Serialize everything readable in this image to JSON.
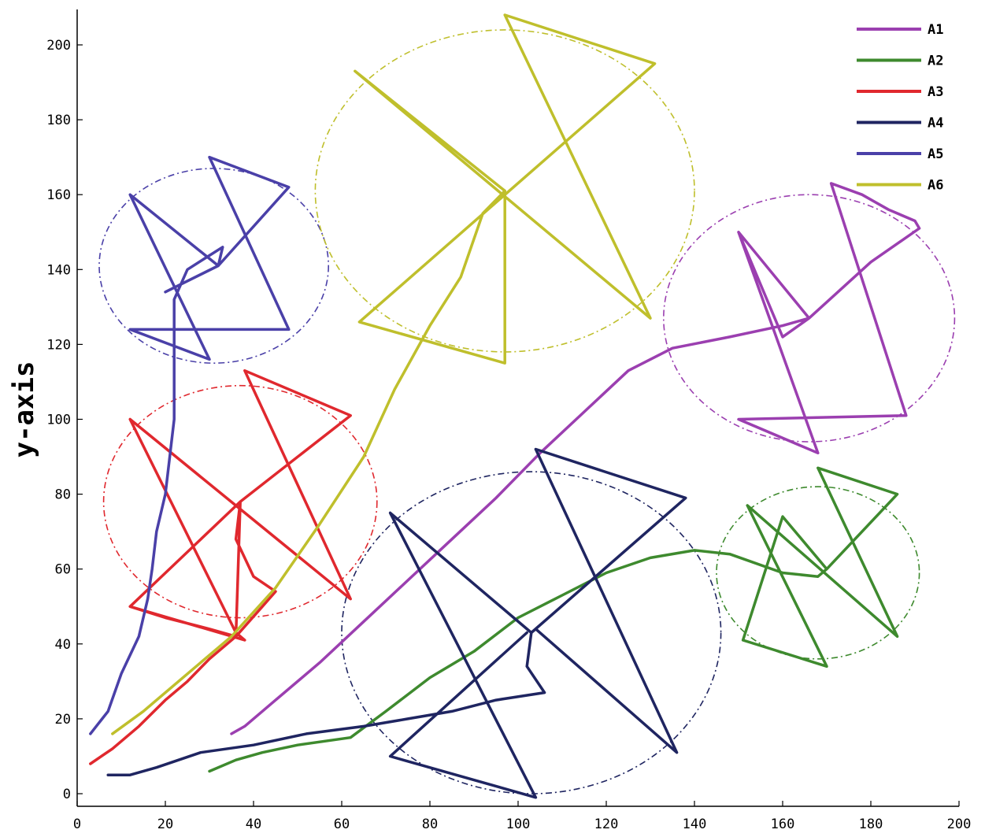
{
  "chart_data": {
    "type": "line",
    "title": "",
    "xlabel": "",
    "ylabel": "y-axis",
    "xlim": [
      0,
      200
    ],
    "ylim": [
      -5,
      210
    ],
    "xticks": [
      0,
      20,
      40,
      60,
      80,
      100,
      120,
      140,
      160,
      180,
      200
    ],
    "yticks": [
      0,
      20,
      40,
      60,
      80,
      100,
      120,
      140,
      160,
      180,
      200
    ],
    "grid": false,
    "legend_position": "top-right",
    "series": [
      {
        "name": "A1",
        "color": "#9b3fb0",
        "points": [
          [
            35,
            16
          ],
          [
            38,
            18
          ],
          [
            45,
            25
          ],
          [
            55,
            35
          ],
          [
            65,
            46
          ],
          [
            75,
            57
          ],
          [
            85,
            68
          ],
          [
            95,
            79
          ],
          [
            105,
            91
          ],
          [
            115,
            102
          ],
          [
            125,
            113
          ],
          [
            135,
            119
          ],
          [
            148,
            122
          ],
          [
            160,
            125
          ],
          [
            166,
            127
          ],
          [
            160,
            122
          ],
          [
            150,
            150
          ],
          [
            168,
            91
          ],
          [
            150,
            100
          ],
          [
            188,
            101
          ],
          [
            171,
            163
          ],
          [
            178,
            160
          ],
          [
            184,
            156
          ],
          [
            190,
            153
          ],
          [
            191,
            151
          ],
          [
            180,
            142
          ],
          [
            166,
            127
          ],
          [
            150,
            150
          ]
        ]
      },
      {
        "name": "A2",
        "color": "#3e8a2e",
        "points": [
          [
            30,
            6
          ],
          [
            36,
            9
          ],
          [
            42,
            11
          ],
          [
            50,
            13
          ],
          [
            62,
            15
          ],
          [
            70,
            22
          ],
          [
            80,
            31
          ],
          [
            90,
            38
          ],
          [
            100,
            47
          ],
          [
            110,
            53
          ],
          [
            120,
            59
          ],
          [
            130,
            63
          ],
          [
            140,
            65
          ],
          [
            148,
            64
          ],
          [
            160,
            59
          ],
          [
            168,
            58
          ],
          [
            170,
            60
          ],
          [
            160,
            74
          ],
          [
            151,
            41
          ],
          [
            170,
            34
          ],
          [
            152,
            77
          ],
          [
            186,
            42
          ],
          [
            168,
            87
          ],
          [
            186,
            80
          ],
          [
            170,
            60
          ]
        ]
      },
      {
        "name": "A3",
        "color": "#e0282e",
        "points": [
          [
            3,
            8
          ],
          [
            8,
            12
          ],
          [
            14,
            18
          ],
          [
            20,
            25
          ],
          [
            25,
            30
          ],
          [
            30,
            36
          ],
          [
            36,
            42
          ],
          [
            42,
            50
          ],
          [
            45,
            54
          ],
          [
            40,
            58
          ],
          [
            36,
            68
          ],
          [
            37,
            78
          ],
          [
            62,
            101
          ],
          [
            38,
            113
          ],
          [
            62,
            52
          ],
          [
            12,
            100
          ],
          [
            36,
            43
          ],
          [
            38,
            41
          ],
          [
            12,
            50
          ],
          [
            20,
            47
          ],
          [
            30,
            44
          ],
          [
            36,
            42
          ],
          [
            37,
            78
          ],
          [
            12,
            50
          ]
        ]
      },
      {
        "name": "A4",
        "color": "#1f2561",
        "points": [
          [
            7,
            5
          ],
          [
            12,
            5
          ],
          [
            18,
            7
          ],
          [
            28,
            11
          ],
          [
            40,
            13
          ],
          [
            52,
            16
          ],
          [
            65,
            18
          ],
          [
            75,
            20
          ],
          [
            85,
            22
          ],
          [
            95,
            25
          ],
          [
            106,
            27
          ],
          [
            102,
            34
          ],
          [
            103,
            43
          ],
          [
            104,
            44
          ],
          [
            136,
            11
          ],
          [
            104,
            92
          ],
          [
            138,
            79
          ],
          [
            103,
            43
          ],
          [
            71,
            75
          ],
          [
            104,
            -1
          ],
          [
            71,
            10
          ],
          [
            102,
            43
          ]
        ]
      },
      {
        "name": "A5",
        "color": "#4a40a8",
        "points": [
          [
            3,
            16
          ],
          [
            7,
            22
          ],
          [
            10,
            32
          ],
          [
            14,
            42
          ],
          [
            16,
            52
          ],
          [
            17,
            60
          ],
          [
            18,
            70
          ],
          [
            20,
            80
          ],
          [
            21,
            90
          ],
          [
            22,
            100
          ],
          [
            22,
            110
          ],
          [
            22,
            120
          ],
          [
            22,
            132
          ],
          [
            25,
            140
          ],
          [
            29,
            143
          ],
          [
            33,
            146
          ],
          [
            32,
            141
          ],
          [
            12,
            160
          ],
          [
            30,
            116
          ],
          [
            12,
            124
          ],
          [
            48,
            124
          ],
          [
            30,
            170
          ],
          [
            48,
            162
          ],
          [
            32,
            141
          ],
          [
            20,
            134
          ]
        ]
      },
      {
        "name": "A6",
        "color": "#bfbf2c",
        "points": [
          [
            8,
            16
          ],
          [
            15,
            22
          ],
          [
            25,
            32
          ],
          [
            35,
            42
          ],
          [
            45,
            55
          ],
          [
            55,
            72
          ],
          [
            65,
            90
          ],
          [
            72,
            108
          ],
          [
            80,
            125
          ],
          [
            87,
            138
          ],
          [
            92,
            155
          ],
          [
            97,
            161
          ],
          [
            63,
            193
          ],
          [
            130,
            127
          ],
          [
            97,
            208
          ],
          [
            131,
            195
          ],
          [
            64,
            126
          ],
          [
            97,
            115
          ],
          [
            97,
            161
          ],
          [
            92,
            155
          ]
        ]
      }
    ],
    "circles": [
      {
        "series": "A1",
        "cx": 166,
        "cy": 127,
        "r": 33
      },
      {
        "series": "A2",
        "cx": 168,
        "cy": 59,
        "r": 23
      },
      {
        "series": "A3",
        "cx": 37,
        "cy": 78,
        "r": 31
      },
      {
        "series": "A4",
        "cx": 103,
        "cy": 43,
        "r": 43
      },
      {
        "series": "A5",
        "cx": 31,
        "cy": 141,
        "r": 26
      },
      {
        "series": "A6",
        "cx": 97,
        "cy": 161,
        "r": 43
      }
    ]
  }
}
